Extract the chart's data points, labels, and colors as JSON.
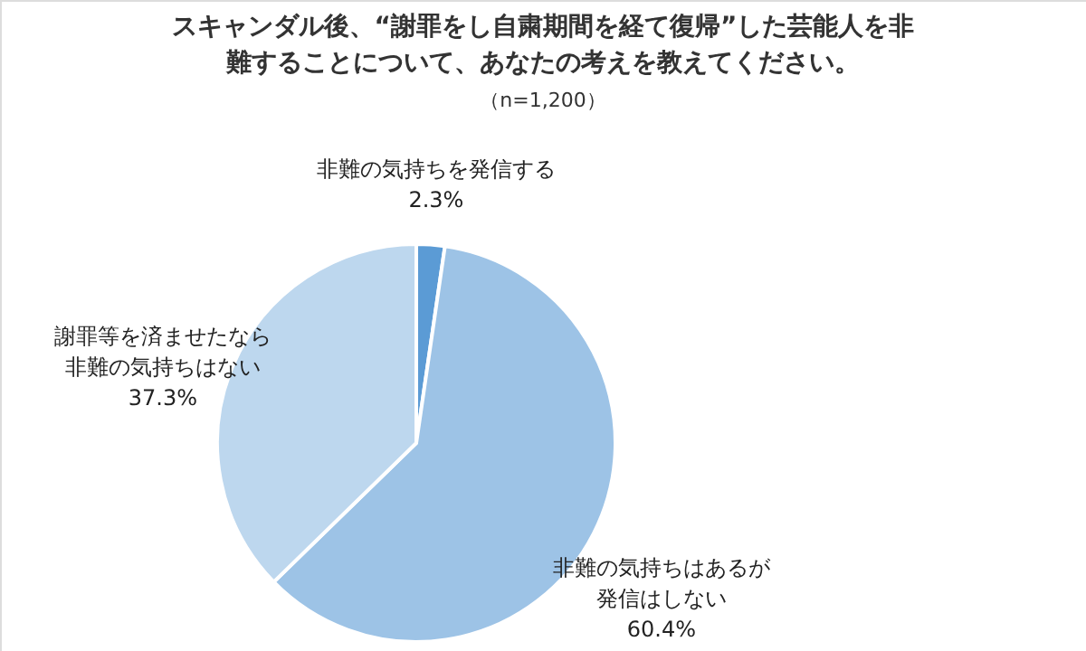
{
  "chart_data": {
    "type": "pie",
    "title": "スキャンダル後、“謝罪をし自粛期間を経て復帰”した芸能人を非難することについて、あなたの考えを教えてください。",
    "subtitle": "（n=1,200）",
    "categories": [
      "非難の気持ちを発信する",
      "非難の気持ちはあるが発信はしない",
      "謝罪等を済ませたなら非難の気持ちはない"
    ],
    "values": [
      2.3,
      60.4,
      37.3
    ],
    "value_labels": [
      "2.3%",
      "60.4%",
      "37.3%"
    ],
    "colors": [
      "#5b9bd5",
      "#9dc3e6",
      "#bdd7ee"
    ]
  }
}
